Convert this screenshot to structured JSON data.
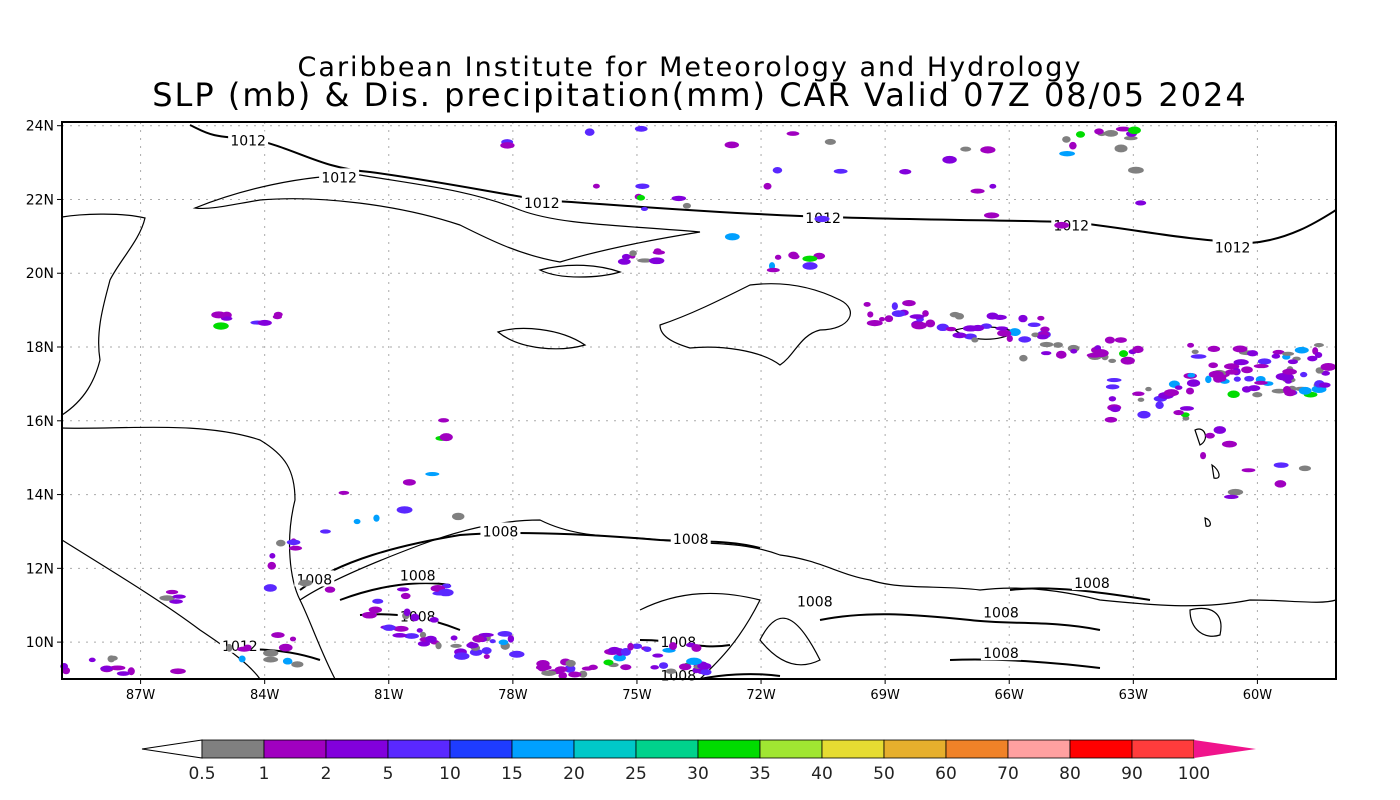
{
  "title": {
    "line1": "Caribbean Institute for Meteorology and Hydrology",
    "line2": "SLP (mb) & Dis. precipitation(mm) CAR Valid 07Z 08/05 2024"
  },
  "axes": {
    "lat_labels": [
      "24N",
      "22N",
      "20N",
      "18N",
      "16N",
      "14N",
      "12N",
      "10N"
    ],
    "lat_values": [
      24,
      22,
      20,
      18,
      16,
      14,
      12,
      10
    ],
    "lon_labels": [
      "87W",
      "84W",
      "81W",
      "78W",
      "75W",
      "72W",
      "69W",
      "66W",
      "63W",
      "60W"
    ],
    "lon_values": [
      -87,
      -84,
      -81,
      -78,
      -75,
      -72,
      -69,
      -66,
      -63,
      -60
    ],
    "lat_range": [
      9.0,
      24.1
    ],
    "lon_range": [
      -88.9,
      -58.1
    ]
  },
  "isobar_labels": [
    {
      "text": "1012",
      "lon": -84.4,
      "lat": 23.6
    },
    {
      "text": "1012",
      "lon": -82.2,
      "lat": 22.6
    },
    {
      "text": "1012",
      "lon": -77.3,
      "lat": 21.9
    },
    {
      "text": "1012",
      "lon": -70.5,
      "lat": 21.5
    },
    {
      "text": "1012",
      "lon": -64.5,
      "lat": 21.3
    },
    {
      "text": "1012",
      "lon": -60.6,
      "lat": 20.7
    },
    {
      "text": "1012",
      "lon": -84.6,
      "lat": 9.9
    },
    {
      "text": "1008",
      "lon": -78.3,
      "lat": 13.0
    },
    {
      "text": "1008",
      "lon": -73.7,
      "lat": 12.8
    },
    {
      "text": "1008",
      "lon": -82.8,
      "lat": 11.7
    },
    {
      "text": "1008",
      "lon": -80.3,
      "lat": 11.8
    },
    {
      "text": "1008",
      "lon": -80.3,
      "lat": 10.7
    },
    {
      "text": "1008",
      "lon": -74.0,
      "lat": 10.0
    },
    {
      "text": "1008",
      "lon": -74.0,
      "lat": 9.1
    },
    {
      "text": "1008",
      "lon": -70.7,
      "lat": 11.1
    },
    {
      "text": "1008",
      "lon": -66.2,
      "lat": 10.8
    },
    {
      "text": "1008",
      "lon": -66.2,
      "lat": 9.7
    },
    {
      "text": "1008",
      "lon": -64.0,
      "lat": 11.6
    }
  ],
  "colorbar": {
    "labels": [
      "0.5",
      "1",
      "2",
      "5",
      "10",
      "15",
      "20",
      "25",
      "30",
      "35",
      "40",
      "50",
      "60",
      "70",
      "80",
      "90",
      "100"
    ],
    "colors": [
      "#808080",
      "#a000c0",
      "#8200dc",
      "#5a28ff",
      "#1e3cff",
      "#00a0ff",
      "#00c8c8",
      "#00d28c",
      "#00dc00",
      "#a0e632",
      "#e6dc32",
      "#e6af2d",
      "#f08228",
      "#ffa0a0",
      "#ff0000",
      "#ff3c3c",
      "#f0148c"
    ]
  }
}
